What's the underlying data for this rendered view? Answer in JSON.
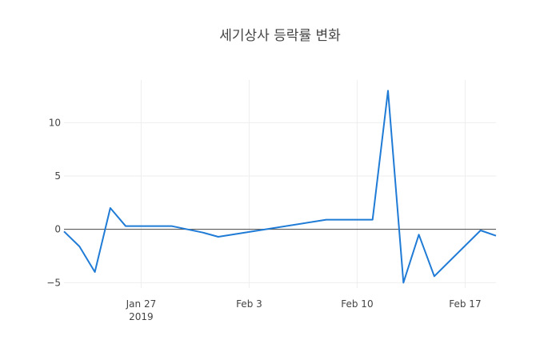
{
  "chart_data": {
    "type": "line",
    "title": "세기상사 등락률 변화",
    "xlabel": "",
    "ylabel": "",
    "x_range": [
      "2019-01-22",
      "2019-02-19"
    ],
    "ylim": [
      -5.5,
      14
    ],
    "x_ticks": [
      {
        "date": "2019-01-27",
        "label": "Jan 27",
        "sublabel": "2019"
      },
      {
        "date": "2019-02-03",
        "label": "Feb 3",
        "sublabel": ""
      },
      {
        "date": "2019-02-10",
        "label": "Feb 10",
        "sublabel": ""
      },
      {
        "date": "2019-02-17",
        "label": "Feb 17",
        "sublabel": ""
      }
    ],
    "y_ticks": [
      {
        "value": 10,
        "label": "10"
      },
      {
        "value": 5,
        "label": "5"
      },
      {
        "value": 0,
        "label": "0"
      },
      {
        "value": -5,
        "label": "−5"
      }
    ],
    "grid": true,
    "zero_line": true,
    "series": [
      {
        "name": "",
        "color": "#1f7bd6",
        "x": [
          "2019-01-22",
          "2019-01-23",
          "2019-01-24",
          "2019-01-25",
          "2019-01-26",
          "2019-01-29",
          "2019-01-30",
          "2019-01-31",
          "2019-02-01",
          "2019-02-08",
          "2019-02-11",
          "2019-02-12",
          "2019-02-13",
          "2019-02-14",
          "2019-02-15",
          "2019-02-18",
          "2019-02-19"
        ],
        "y": [
          -0.2,
          -1.6,
          -4.0,
          2.0,
          0.3,
          0.3,
          0.0,
          -0.3,
          -0.7,
          0.9,
          0.9,
          13.0,
          -5.0,
          -0.5,
          -4.4,
          -0.1,
          -0.6
        ]
      }
    ]
  }
}
